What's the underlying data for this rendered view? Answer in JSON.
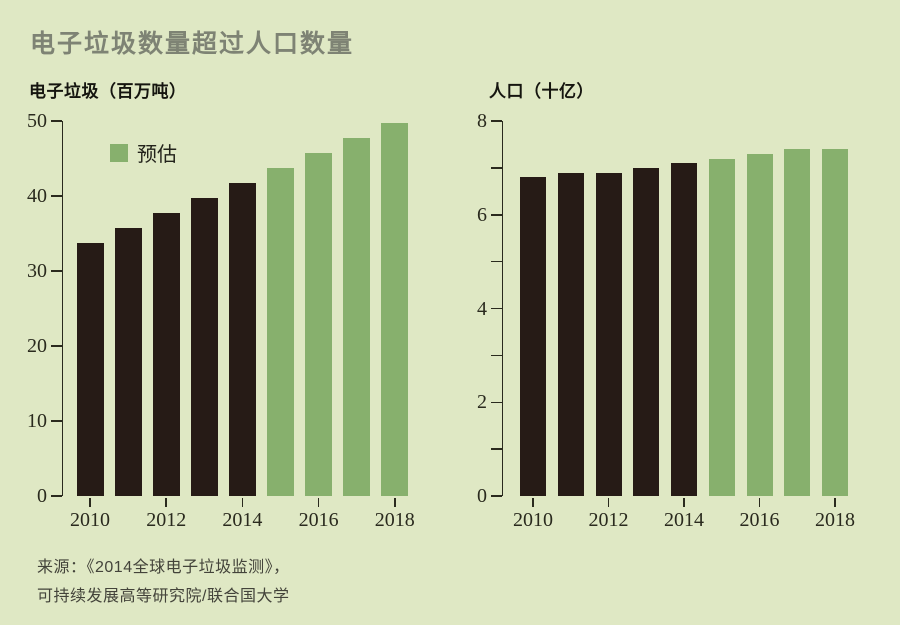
{
  "title": "电子垃圾数量超过人口数量",
  "legend": {
    "label": "预估"
  },
  "source": {
    "line1": "来源：《2014全球电子垃圾监测》，",
    "line2": "可持续发展高等研究院/联合国大学"
  },
  "colors": {
    "background": "#dfe8c4",
    "actual_bar": "#261b16",
    "estimate_bar": "#87b06d",
    "axis": "#2a2a1e",
    "title_text": "#7e8374"
  },
  "chart_data": [
    {
      "type": "bar",
      "title": "电子垃圾（百万吨）",
      "categories": [
        "2010",
        "2011",
        "2012",
        "2013",
        "2014",
        "2015",
        "2016",
        "2017",
        "2018"
      ],
      "values": [
        33.8,
        35.8,
        37.8,
        39.8,
        41.8,
        43.8,
        45.7,
        47.8,
        49.8
      ],
      "estimated_from": "2015",
      "ylim": [
        0,
        50
      ],
      "y_tick_step": 10,
      "y_label_step": 10,
      "x_tick_labels": [
        "2010",
        "2012",
        "2014",
        "2016",
        "2018"
      ],
      "grid": "off",
      "legend_entry": "预估"
    },
    {
      "type": "bar",
      "title": "人口（十亿）",
      "categories": [
        "2010",
        "2011",
        "2012",
        "2013",
        "2014",
        "2015",
        "2016",
        "2017",
        "2018"
      ],
      "values": [
        6.8,
        6.9,
        6.9,
        7.0,
        7.1,
        7.2,
        7.3,
        7.4,
        7.4
      ],
      "estimated_from": "2015",
      "ylim": [
        0,
        8
      ],
      "y_tick_step": 1,
      "y_label_step": 2,
      "x_tick_labels": [
        "2010",
        "2012",
        "2014",
        "2016",
        "2018"
      ],
      "grid": "off"
    }
  ]
}
